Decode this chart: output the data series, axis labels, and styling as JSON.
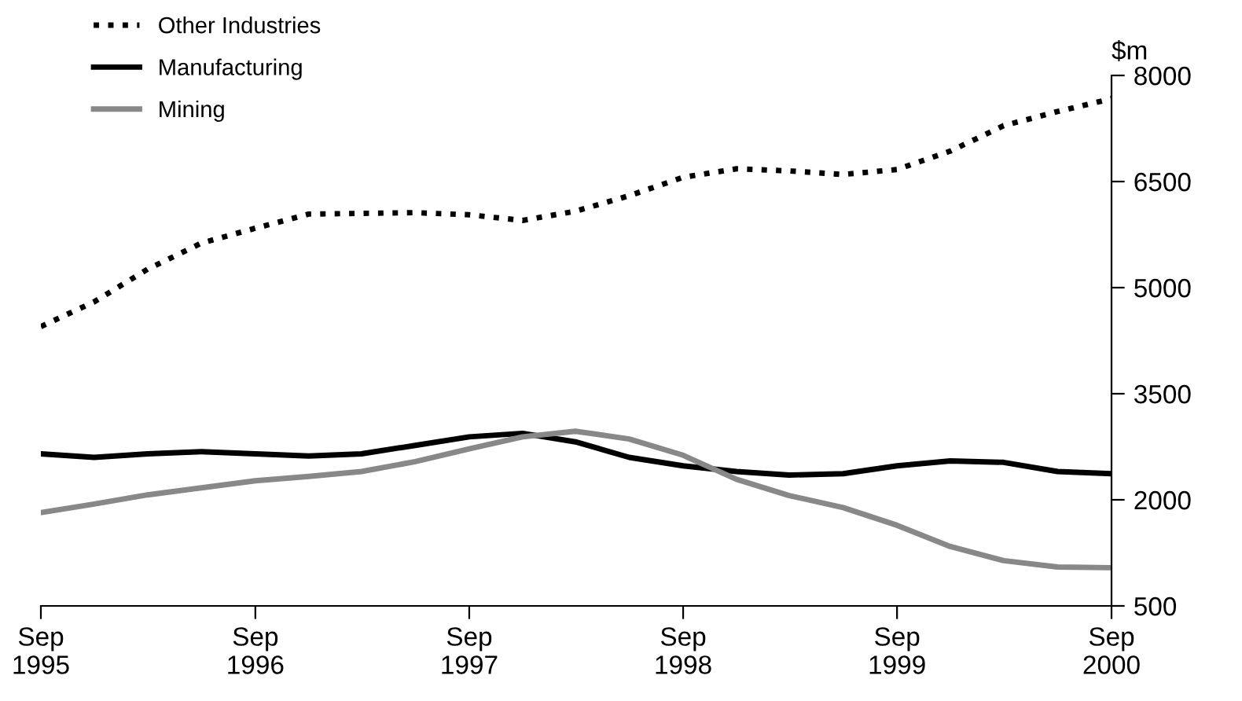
{
  "chart_data": {
    "type": "line",
    "ylabel": "$m",
    "x": [
      "1995-09",
      "1995-12",
      "1996-03",
      "1996-06",
      "1996-09",
      "1996-12",
      "1997-03",
      "1997-06",
      "1997-09",
      "1997-12",
      "1998-03",
      "1998-06",
      "1998-09",
      "1998-12",
      "1999-03",
      "1999-06",
      "1999-09",
      "1999-12",
      "2000-03",
      "2000-06",
      "2000-09"
    ],
    "series": [
      {
        "name": "Other Industries",
        "color": "#000000",
        "line_style": "dotted",
        "values": [
          4450,
          4800,
          5260,
          5630,
          5840,
          6040,
          6050,
          6060,
          6030,
          5950,
          6080,
          6300,
          6560,
          6680,
          6650,
          6600,
          6670,
          6930,
          7290,
          7490,
          7670
        ]
      },
      {
        "name": "Manufacturing",
        "color": "#000000",
        "line_style": "solid",
        "values": [
          2650,
          2600,
          2650,
          2680,
          2650,
          2620,
          2650,
          2770,
          2890,
          2940,
          2820,
          2600,
          2480,
          2400,
          2350,
          2370,
          2480,
          2550,
          2530,
          2400,
          2370
        ]
      },
      {
        "name": "Mining",
        "color": "#888888",
        "line_style": "solid",
        "values": [
          1820,
          1940,
          2070,
          2170,
          2270,
          2330,
          2400,
          2540,
          2720,
          2890,
          2970,
          2860,
          2630,
          2290,
          2060,
          1890,
          1640,
          1340,
          1140,
          1050,
          1040
        ]
      }
    ],
    "xlim": [
      "1995-09",
      "2000-09"
    ],
    "xticks": [
      {
        "value": "1995-09",
        "label": "Sep\n1995"
      },
      {
        "value": "1996-09",
        "label": "Sep\n1996"
      },
      {
        "value": "1997-09",
        "label": "Sep\n1997"
      },
      {
        "value": "1998-09",
        "label": "Sep\n1998"
      },
      {
        "value": "1999-09",
        "label": "Sep\n1999"
      },
      {
        "value": "2000-09",
        "label": "Sep\n2000"
      }
    ],
    "ylim": [
      500,
      8000
    ],
    "yticks": [
      500,
      2000,
      3500,
      5000,
      6500,
      8000
    ],
    "grid": false,
    "legend": "top left",
    "marker": "none"
  }
}
